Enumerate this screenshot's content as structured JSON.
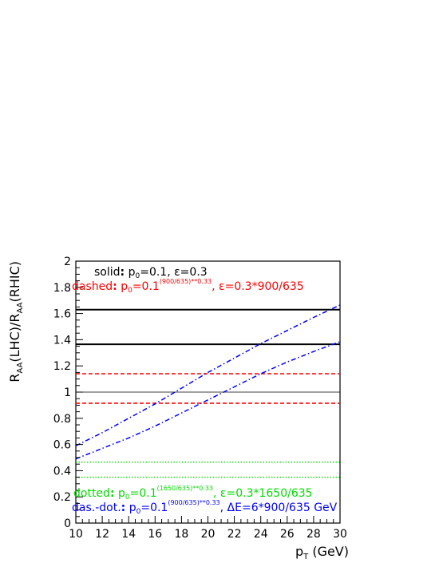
{
  "chart_data": {
    "type": "line",
    "xlabel": {
      "main": "p",
      "sub": "T",
      "rest": " (GeV)"
    },
    "ylabel": {
      "r1": "R",
      "s1": "AA",
      "m": "(LHC)/R",
      "s2": "AA",
      "e": "(RHIC)"
    },
    "xlim": [
      10,
      30
    ],
    "ylim": [
      0,
      2
    ],
    "xticks": [
      10,
      12,
      14,
      16,
      18,
      20,
      22,
      24,
      26,
      28,
      30
    ],
    "yticks": [
      0,
      0.2,
      0.4,
      0.6,
      0.8,
      1,
      1.2,
      1.4,
      1.6,
      1.8,
      2
    ],
    "reference_line": 1,
    "colors": {
      "solid": "#000000",
      "dashed": "#ff0000",
      "dotted": "#00dd00",
      "dashdot": "#0000ff"
    },
    "series": [
      {
        "style": "solid",
        "color": "#000000",
        "x": [
          10,
          30
        ],
        "y": [
          1.63,
          1.63
        ]
      },
      {
        "style": "solid",
        "color": "#000000",
        "x": [
          10,
          30
        ],
        "y": [
          1.365,
          1.365
        ]
      },
      {
        "style": "dashed",
        "color": "#ff0000",
        "x": [
          10,
          30
        ],
        "y": [
          1.14,
          1.14
        ]
      },
      {
        "style": "dashed",
        "color": "#ff0000",
        "x": [
          10,
          30
        ],
        "y": [
          0.915,
          0.915
        ]
      },
      {
        "style": "dotted",
        "color": "#00dd00",
        "x": [
          10,
          30
        ],
        "y": [
          0.465,
          0.465
        ]
      },
      {
        "style": "dotted",
        "color": "#00dd00",
        "x": [
          10,
          30
        ],
        "y": [
          0.35,
          0.35
        ]
      },
      {
        "style": "dashdot",
        "color": "#0000ff",
        "x": [
          10,
          12,
          14,
          16,
          18,
          20,
          22,
          24,
          26,
          28,
          30
        ],
        "y": [
          0.59,
          0.69,
          0.8,
          0.91,
          1.03,
          1.15,
          1.26,
          1.37,
          1.47,
          1.57,
          1.665
        ]
      },
      {
        "style": "dashdot",
        "color": "#0000ff",
        "x": [
          10,
          12,
          14,
          16,
          18,
          20,
          22,
          24,
          26,
          28,
          30
        ],
        "y": [
          0.49,
          0.57,
          0.65,
          0.74,
          0.84,
          0.94,
          1.04,
          1.14,
          1.23,
          1.31,
          1.385
        ]
      }
    ],
    "legend": [
      {
        "color": "#000000",
        "label": "solid",
        "colon": ":",
        "text": " p",
        "sub": "0",
        "rest": "=0.1, ε=0.3"
      },
      {
        "color": "#ff0000",
        "label": "dashed",
        "colon": ":",
        "text": " p",
        "sub": "0",
        "mid": "=0.1",
        "sup": "(900/635)**0.33",
        "rest": ", ε=0.3*900/635"
      },
      {
        "color": "#00dd00",
        "label": "dotted",
        "colon": ":",
        "text": " p",
        "sub": "0",
        "mid": "=0.1",
        "sup": "(1650/635)**0.33",
        "rest": ", ε=0.3*1650/635"
      },
      {
        "color": "#0000ff",
        "label": "das.-dot.",
        "colon": ":",
        "text": " p",
        "sub": "0",
        "mid": "=0.1",
        "sup": "(900/635)**0.33",
        "rest": ", ΔE=6*900/635 GeV"
      }
    ]
  }
}
